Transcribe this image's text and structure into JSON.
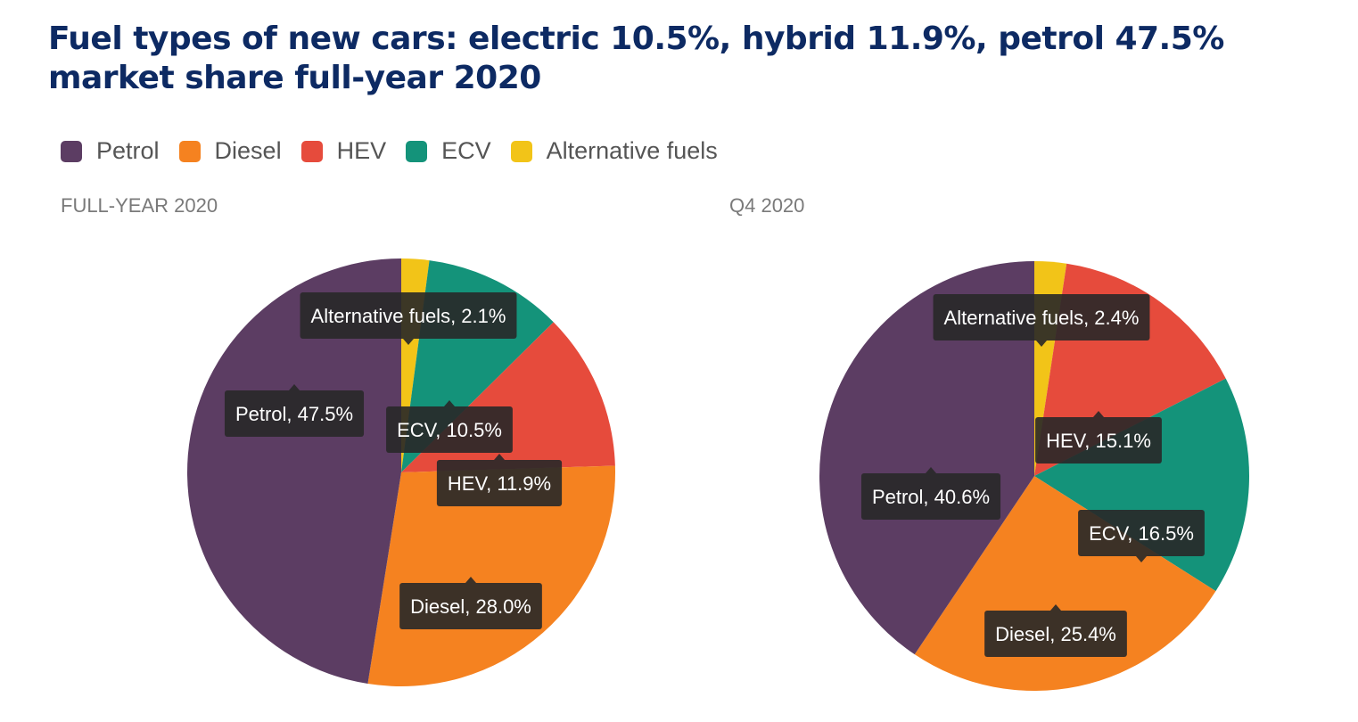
{
  "title": "Fuel types of new cars: electric 10.5%, hybrid 11.9%, petrol 47.5% market share full-year 2020",
  "legend": [
    {
      "label": "Petrol",
      "color": "#5c3d63"
    },
    {
      "label": "Diesel",
      "color": "#f58220"
    },
    {
      "label": "HEV",
      "color": "#e64b3c"
    },
    {
      "label": "ECV",
      "color": "#14937a"
    },
    {
      "label": "Alternative fuels",
      "color": "#f2c418"
    }
  ],
  "chart_data": [
    {
      "type": "pie",
      "title": "FULL-YEAR 2020",
      "slices": [
        {
          "label": "Alternative fuels",
          "value": 2.1,
          "color": "#f2c418",
          "tooltip": "Alternative fuels, 2.1%"
        },
        {
          "label": "ECV",
          "value": 10.5,
          "color": "#14937a",
          "tooltip": "ECV, 10.5%"
        },
        {
          "label": "HEV",
          "value": 11.9,
          "color": "#e64b3c",
          "tooltip": "HEV, 11.9%"
        },
        {
          "label": "Diesel",
          "value": 28.0,
          "color": "#f58220",
          "tooltip": "Diesel, 28.0%"
        },
        {
          "label": "Petrol",
          "value": 47.5,
          "color": "#5c3d63",
          "tooltip": "Petrol, 47.5%"
        }
      ]
    },
    {
      "type": "pie",
      "title": "Q4 2020",
      "slices": [
        {
          "label": "Alternative fuels",
          "value": 2.4,
          "color": "#f2c418",
          "tooltip": "Alternative fuels, 2.4%"
        },
        {
          "label": "HEV",
          "value": 15.1,
          "color": "#e64b3c",
          "tooltip": "HEV, 15.1%"
        },
        {
          "label": "ECV",
          "value": 16.5,
          "color": "#14937a",
          "tooltip": "ECV, 16.5%"
        },
        {
          "label": "Diesel",
          "value": 25.4,
          "color": "#f58220",
          "tooltip": "Diesel, 25.4%"
        },
        {
          "label": "Petrol",
          "value": 40.6,
          "color": "#5c3d63",
          "tooltip": "Petrol, 40.6%"
        }
      ]
    }
  ]
}
